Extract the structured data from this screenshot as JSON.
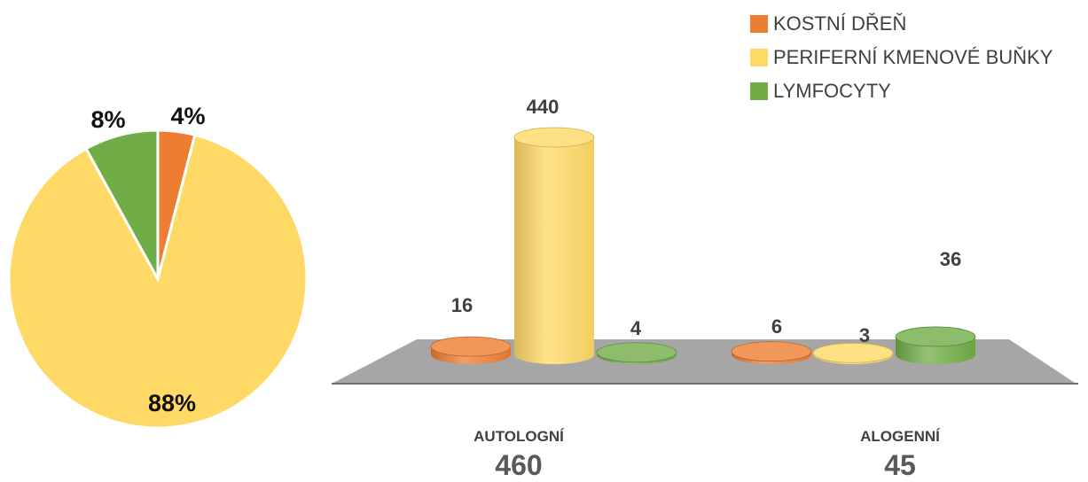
{
  "colors": {
    "kostni": "#ED7D31",
    "periferni": "#FFD966",
    "lymfocyty": "#70AD47",
    "floor": "#A6A6A6",
    "axis": "#404040"
  },
  "legend": [
    {
      "label": "KOSTNÍ DŘEŇ",
      "color": "#ED7D31"
    },
    {
      "label": "PERIFERNÍ KMENOVÉ BUŇKY",
      "color": "#FFD966"
    },
    {
      "label": "LYMFOCYTY",
      "color": "#70AD47"
    }
  ],
  "categories": [
    {
      "name": "AUTOLOGNÍ",
      "total": "460"
    },
    {
      "name": "ALOGENNÍ",
      "total": "45"
    }
  ],
  "chart_data": [
    {
      "type": "pie",
      "slices": [
        {
          "label": "4%",
          "value": 4,
          "color": "#ED7D31",
          "series": "KOSTNÍ DŘEŇ"
        },
        {
          "label": "88%",
          "value": 88,
          "color": "#FFD966",
          "series": "PERIFERNÍ KMENOVÉ BUŇKY"
        },
        {
          "label": "8%",
          "value": 8,
          "color": "#70AD47",
          "series": "LYMFOCYTY"
        }
      ]
    },
    {
      "type": "bar",
      "style": "3d-cylinder",
      "categories": [
        "AUTOLOGNÍ",
        "ALOGENNÍ"
      ],
      "series": [
        {
          "name": "KOSTNÍ DŘEŇ",
          "color": "#ED7D31",
          "values": [
            16,
            6
          ]
        },
        {
          "name": "PERIFERNÍ KMENOVÉ BUŇKY",
          "color": "#FFD966",
          "values": [
            440,
            3
          ]
        },
        {
          "name": "LYMFOCYTY",
          "color": "#70AD47",
          "values": [
            4,
            36
          ]
        }
      ],
      "legend_position": "top-right",
      "grid": false
    }
  ]
}
